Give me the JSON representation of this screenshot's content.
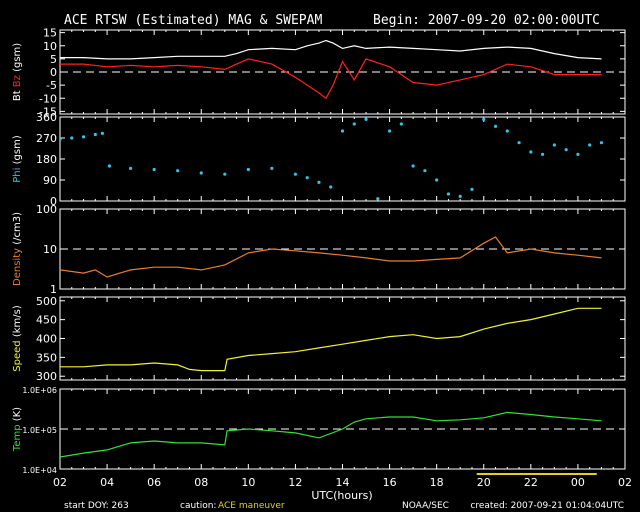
{
  "header": {
    "title": "ACE RTSW (Estimated) MAG & SWEPAM",
    "begin": "Begin: 2007-09-20 02:00:00UTC"
  },
  "footer": {
    "start_doy": "start DOY: 263",
    "caution_label": "caution:",
    "caution_value": "ACE maneuver",
    "source": "NOAA/SEC",
    "created": "created: 2007-09-21 01:04:04UTC"
  },
  "colors": {
    "bt": "#ffffff",
    "bz": "#ff2020",
    "phi": "#33c3e8",
    "density": "#e87d33",
    "speed": "#f0f033",
    "temp": "#33e033",
    "maneuver": "#e0d020",
    "axes": "#ffffff"
  },
  "chart_data": {
    "type": "line",
    "xlabel": "UTC(hours)",
    "xlim": [
      2,
      26
    ],
    "xticks": [
      "02",
      "04",
      "06",
      "08",
      "10",
      "12",
      "14",
      "16",
      "18",
      "20",
      "22",
      "00",
      "02"
    ],
    "maneuver_range": [
      19.7,
      24.8
    ],
    "panels": [
      {
        "id": "mag",
        "ylabel_parts": [
          {
            "text": "Bt",
            "color": "#ffffff"
          },
          {
            "text": " Bz",
            "color": "#ff2020"
          },
          {
            "text": " (gsm)",
            "color": "#ffffff"
          }
        ],
        "ylim": [
          -16,
          16
        ],
        "scale": "linear",
        "yticks": [
          "15",
          "10",
          "5",
          "0",
          "-5",
          "-10",
          "-15"
        ],
        "ytick_values": [
          15,
          10,
          5,
          0,
          -5,
          -10,
          -15
        ],
        "dashed": [
          0
        ],
        "series": [
          {
            "key": "bt",
            "color": "#ffffff",
            "style": "line",
            "x": [
              2,
              3,
              4,
              5,
              6,
              7,
              8,
              9,
              9.5,
              10,
              11,
              12,
              12.5,
              13,
              13.3,
              13.6,
              14,
              14.5,
              15,
              16,
              17,
              18,
              19,
              20,
              21,
              22,
              23,
              24,
              25
            ],
            "values": [
              5.5,
              5.5,
              5,
              5,
              5.5,
              6,
              6,
              6,
              7,
              8.5,
              9,
              8.5,
              10,
              11,
              12,
              11,
              9,
              10,
              9,
              9.5,
              9,
              8.5,
              8,
              9,
              9.5,
              9,
              7,
              5.5,
              5
            ]
          },
          {
            "key": "bz",
            "color": "#ff2020",
            "style": "line",
            "x": [
              2,
              3,
              4,
              5,
              6,
              7,
              8,
              9,
              9.5,
              10,
              11,
              12,
              12.5,
              13,
              13.3,
              13.6,
              14,
              14.5,
              15,
              16,
              17,
              18,
              19,
              20,
              21,
              22,
              23,
              24,
              25
            ],
            "values": [
              3,
              3,
              2,
              2.5,
              2,
              2.5,
              2,
              1,
              3,
              5,
              3,
              -2,
              -5,
              -8,
              -10,
              -5,
              4,
              -3,
              5,
              2,
              -4,
              -5,
              -3,
              -1,
              3,
              2,
              -1,
              -1,
              -1
            ]
          }
        ]
      },
      {
        "id": "phi",
        "ylabel_parts": [
          {
            "text": "Phi",
            "color": "#33c3e8"
          },
          {
            "text": " (gsm)",
            "color": "#ffffff"
          }
        ],
        "ylim": [
          0,
          360
        ],
        "scale": "linear",
        "yticks": [
          "360",
          "270",
          "180",
          "90",
          "0"
        ],
        "ytick_values": [
          360,
          270,
          180,
          90,
          0
        ],
        "dashed": [],
        "series": [
          {
            "key": "phi",
            "color": "#33c3e8",
            "style": "dots",
            "x": [
              2,
              2.5,
              3,
              3.5,
              3.8,
              4.1,
              5,
              6,
              7,
              8,
              9,
              10,
              11,
              12,
              12.5,
              13,
              13.5,
              14,
              14.5,
              15,
              15.5,
              16,
              16.5,
              17,
              17.5,
              18,
              18.5,
              19,
              19.5,
              20,
              20.5,
              21,
              21.5,
              22,
              22.5,
              23,
              23.5,
              24,
              24.5,
              25
            ],
            "values": [
              265,
              270,
              275,
              285,
              290,
              150,
              140,
              135,
              130,
              120,
              115,
              135,
              140,
              115,
              100,
              80,
              60,
              300,
              330,
              350,
              10,
              300,
              330,
              150,
              130,
              90,
              30,
              20,
              50,
              350,
              320,
              300,
              250,
              210,
              200,
              240,
              220,
              200,
              240,
              250
            ]
          }
        ]
      },
      {
        "id": "density",
        "ylabel_parts": [
          {
            "text": "Density",
            "color": "#e87d33"
          },
          {
            "text": " (/cm3)",
            "color": "#ffffff"
          }
        ],
        "ylim": [
          1,
          100
        ],
        "scale": "log",
        "yticks": [
          "100",
          "10",
          "1"
        ],
        "ytick_values": [
          100,
          10,
          1
        ],
        "dashed": [
          10
        ],
        "series": [
          {
            "key": "density",
            "color": "#e87d33",
            "style": "line",
            "x": [
              2,
              3,
              3.5,
              4,
              5,
              6,
              7,
              8,
              9,
              10,
              11,
              12,
              13,
              14,
              15,
              16,
              17,
              18,
              19,
              20,
              20.5,
              21,
              22,
              23,
              24,
              25
            ],
            "values": [
              3,
              2.5,
              3,
              2,
              3,
              3.5,
              3.5,
              3,
              4,
              8,
              10,
              9,
              8,
              7,
              6,
              5,
              5,
              5.5,
              6,
              14,
              20,
              8,
              10,
              8,
              7,
              6
            ]
          }
        ]
      },
      {
        "id": "speed",
        "ylabel_parts": [
          {
            "text": "Speed",
            "color": "#f0f033"
          },
          {
            "text": " (km/s)",
            "color": "#ffffff"
          }
        ],
        "ylim": [
          290,
          510
        ],
        "scale": "linear",
        "yticks": [
          "500",
          "450",
          "400",
          "350",
          "300"
        ],
        "ytick_values": [
          500,
          450,
          400,
          350,
          300
        ],
        "dashed": [],
        "series": [
          {
            "key": "speed",
            "color": "#f0f033",
            "style": "line",
            "x": [
              2,
              3,
              4,
              5,
              6,
              7,
              7.5,
              8,
              9,
              9.1,
              10,
              11,
              12,
              13,
              14,
              15,
              16,
              17,
              18,
              19,
              20,
              21,
              22,
              23,
              24,
              25
            ],
            "values": [
              325,
              325,
              330,
              330,
              335,
              330,
              318,
              315,
              315,
              345,
              355,
              360,
              365,
              375,
              385,
              395,
              405,
              410,
              400,
              405,
              425,
              440,
              450,
              465,
              480,
              480
            ]
          }
        ]
      },
      {
        "id": "temp",
        "ylabel_parts": [
          {
            "text": "Temp",
            "color": "#33e033"
          },
          {
            "text": " (K)",
            "color": "#ffffff"
          }
        ],
        "ylim": [
          10000,
          1000000
        ],
        "scale": "log",
        "yticks": [
          "1.0E+06",
          "1.0E+05",
          "1.0E+04"
        ],
        "ytick_values": [
          1000000,
          100000,
          10000
        ],
        "dashed": [
          100000
        ],
        "series": [
          {
            "key": "temp",
            "color": "#33e033",
            "style": "line",
            "x": [
              2,
              3,
              4,
              5,
              6,
              7,
              8,
              9,
              9.1,
              10,
              11,
              12,
              13,
              14,
              14.5,
              15,
              16,
              17,
              18,
              19,
              20,
              21,
              22,
              23,
              24,
              25
            ],
            "values": [
              20000,
              25000,
              30000,
              45000,
              50000,
              45000,
              45000,
              40000,
              90000,
              100000,
              90000,
              80000,
              60000,
              100000,
              150000,
              180000,
              200000,
              200000,
              160000,
              170000,
              190000,
              260000,
              230000,
              200000,
              180000,
              160000
            ]
          }
        ]
      }
    ]
  }
}
